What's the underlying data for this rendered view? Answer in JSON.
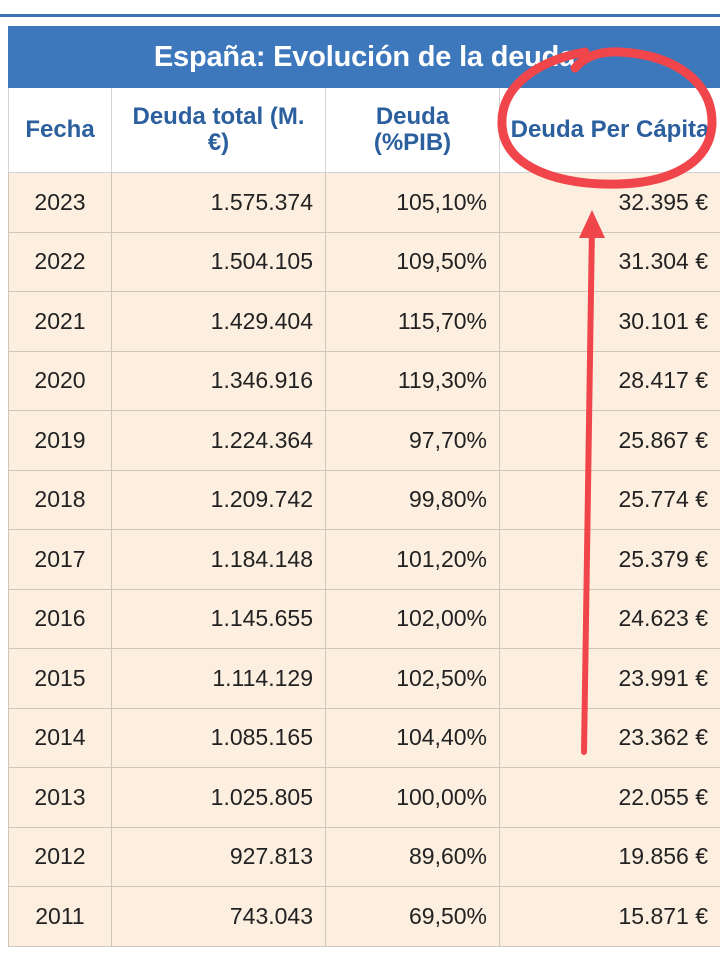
{
  "table": {
    "title": "España: Evolución de la deuda",
    "headers": [
      "Fecha",
      "Deuda total (M. €)",
      "Deuda (%PIB)",
      "Deuda Per Cápita"
    ],
    "rows": [
      {
        "fecha": "2023",
        "total": "1.575.374",
        "pib": "105,10%",
        "percapita": "32.395 €"
      },
      {
        "fecha": "2022",
        "total": "1.504.105",
        "pib": "109,50%",
        "percapita": "31.304 €"
      },
      {
        "fecha": "2021",
        "total": "1.429.404",
        "pib": "115,70%",
        "percapita": "30.101 €"
      },
      {
        "fecha": "2020",
        "total": "1.346.916",
        "pib": "119,30%",
        "percapita": "28.417 €"
      },
      {
        "fecha": "2019",
        "total": "1.224.364",
        "pib": "97,70%",
        "percapita": "25.867 €"
      },
      {
        "fecha": "2018",
        "total": "1.209.742",
        "pib": "99,80%",
        "percapita": "25.774 €"
      },
      {
        "fecha": "2017",
        "total": "1.184.148",
        "pib": "101,20%",
        "percapita": "25.379 €"
      },
      {
        "fecha": "2016",
        "total": "1.145.655",
        "pib": "102,00%",
        "percapita": "24.623 €"
      },
      {
        "fecha": "2015",
        "total": "1.114.129",
        "pib": "102,50%",
        "percapita": "23.991 €"
      },
      {
        "fecha": "2014",
        "total": "1.085.165",
        "pib": "104,40%",
        "percapita": "23.362 €"
      },
      {
        "fecha": "2013",
        "total": "1.025.805",
        "pib": "100,00%",
        "percapita": "22.055 €"
      },
      {
        "fecha": "2012",
        "total": "927.813",
        "pib": "89,60%",
        "percapita": "19.856 €"
      },
      {
        "fecha": "2011",
        "total": "743.043",
        "pib": "69,50%",
        "percapita": "15.871 €"
      }
    ]
  },
  "colors": {
    "header_blue": "#3d77bc",
    "header_text": "#2b5f9e",
    "row_background": "#fdefe0",
    "annotation_red": "#f0454b"
  }
}
